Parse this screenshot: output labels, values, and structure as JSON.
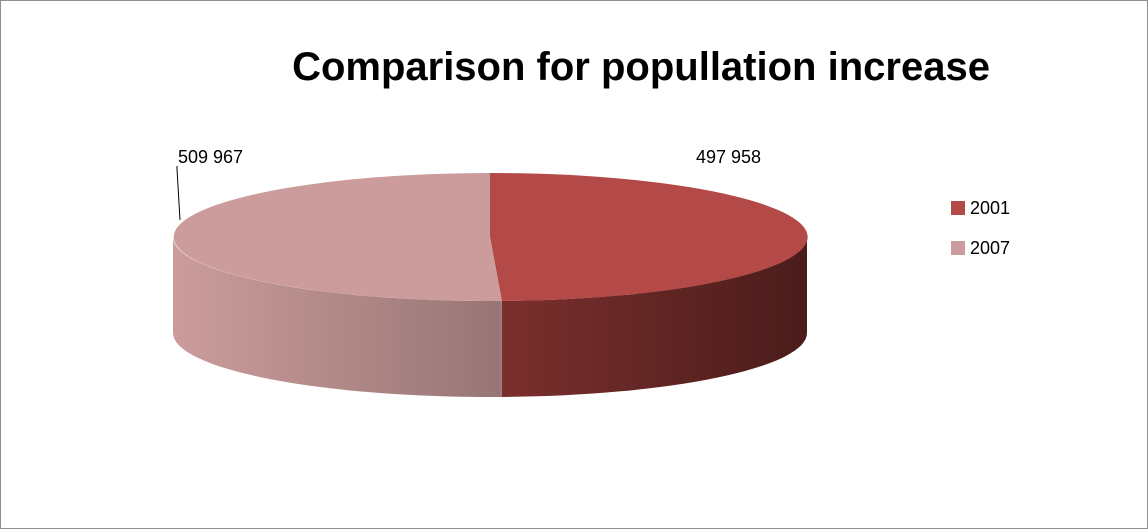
{
  "chart_data": {
    "type": "pie",
    "title": "Comparison for popullation increase",
    "categories": [
      "2001",
      "2007"
    ],
    "values": [
      497958,
      509967
    ],
    "data_labels": [
      "497 958",
      "509 967"
    ],
    "colors": [
      "#b34a47",
      "#cb9c9b"
    ],
    "style": "3d",
    "legend": "right"
  }
}
